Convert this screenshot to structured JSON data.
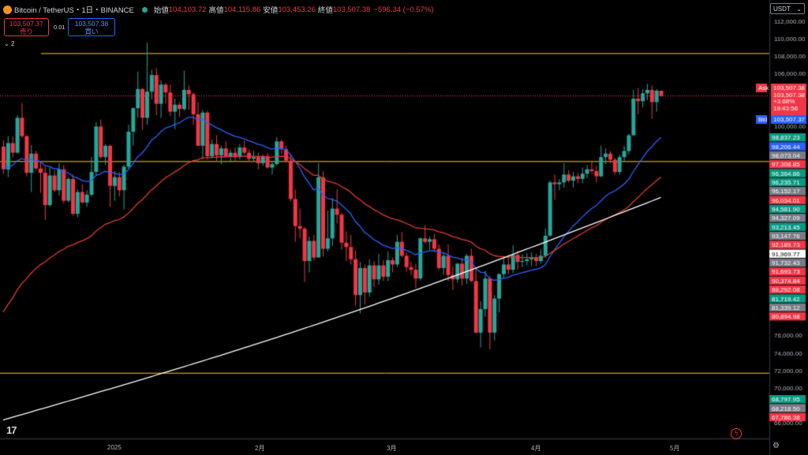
{
  "header": {
    "symbol": "Bitcoin / TetherUS・1日・BINANCE",
    "open_label": "始値",
    "open": "104,103.72",
    "high_label": "高値",
    "high": "104,115.86",
    "low_label": "安値",
    "low": "103,453.26",
    "close_label": "終値",
    "close": "103,507.38",
    "change": "−596.34 (−0.57%)"
  },
  "trade": {
    "sell_price": "103,507.37",
    "sell_label": "売り",
    "spread": "0.01",
    "buy_price": "103,507.38",
    "buy_label": "買い"
  },
  "indicators_count": "2",
  "currency": "USDT",
  "colors": {
    "up": "#26a69a",
    "down": "#f23645",
    "ema_fast": "#2962ff",
    "ema_mid": "#e53935",
    "ma_long": "#ffffff",
    "hline": "#f5d300",
    "bg": "#000000"
  },
  "chart_data": {
    "type": "candlestick",
    "y_axis_ticks": [
      "112,000.00",
      "110,000.00",
      "108,000.00",
      "106,000.00",
      "100,000.00",
      "76,000.00",
      "74,000.00",
      "72,000.00",
      "70,000.00",
      "66,000.00"
    ],
    "x_axis_labels": [
      "2025",
      "2月",
      "3月",
      "4月",
      "5月"
    ],
    "ylim": [
      66000,
      112000
    ],
    "horizontal_lines": [
      108400,
      96034,
      71800
    ],
    "price_line": 103507.38,
    "ask_label": "Ask",
    "bid_label": "Bid",
    "ask_tag": [
      "103,507.38",
      "103,507.38",
      "+3.68%",
      "19:43:56"
    ],
    "bid_tag": "103,507.37",
    "price_tags": [
      {
        "text": "98,837.23",
        "color": "#089981"
      },
      {
        "text": "98,206.44",
        "color": "#2962ff"
      },
      {
        "text": "98,073.04",
        "color": "#787b86"
      },
      {
        "text": "97,308.85",
        "color": "#f23645"
      },
      {
        "text": "96,364.86",
        "color": "#089981"
      },
      {
        "text": "96,235.71",
        "color": "#089981"
      },
      {
        "text": "96,152.17",
        "color": "#787b86"
      },
      {
        "text": "96,034.01",
        "color": "#f23645"
      },
      {
        "text": "94,581.90",
        "color": "#089981"
      },
      {
        "text": "94,327.09",
        "color": "#787b86"
      },
      {
        "text": "93,213.45",
        "color": "#089981"
      },
      {
        "text": "93,147.76",
        "color": "#787b86"
      },
      {
        "text": "92,189.73",
        "color": "#f23645"
      },
      {
        "text": "91,969.77",
        "color": "#ffffff"
      },
      {
        "text": "91,732.43",
        "color": "#787b86"
      },
      {
        "text": "91,693.73",
        "color": "#f23645"
      },
      {
        "text": "90,374.84",
        "color": "#f23645"
      },
      {
        "text": "88,292.08",
        "color": "#f23645"
      },
      {
        "text": "81,719.42",
        "color": "#089981"
      },
      {
        "text": "81,339.12",
        "color": "#787b86"
      },
      {
        "text": "80,894.98",
        "color": "#f23645"
      },
      {
        "text": "68,797.95",
        "color": "#089981"
      },
      {
        "text": "68,218.50",
        "color": "#787b86"
      },
      {
        "text": "67,786.38",
        "color": "#f23645"
      }
    ],
    "candles": [
      [
        97700,
        98400,
        94600,
        95100
      ],
      [
        95100,
        98900,
        94200,
        98100
      ],
      [
        98100,
        98900,
        96500,
        97000
      ],
      [
        97000,
        101300,
        96900,
        101000
      ],
      [
        101000,
        102700,
        98700,
        98900
      ],
      [
        98900,
        99000,
        94300,
        94700
      ],
      [
        94700,
        97900,
        92500,
        96900
      ],
      [
        96900,
        97200,
        95000,
        95200
      ],
      [
        95200,
        96000,
        92400,
        94700
      ],
      [
        94700,
        95400,
        89300,
        91000
      ],
      [
        91000,
        95300,
        90800,
        94400
      ],
      [
        94400,
        95000,
        92500,
        92700
      ],
      [
        92700,
        95800,
        92100,
        95100
      ],
      [
        95100,
        95600,
        91200,
        91500
      ],
      [
        91500,
        94200,
        91300,
        94000
      ],
      [
        94000,
        94500,
        89800,
        90000
      ],
      [
        90000,
        92800,
        89600,
        92500
      ],
      [
        92500,
        93400,
        91200,
        91300
      ],
      [
        91300,
        92700,
        90800,
        92200
      ],
      [
        92200,
        96500,
        92000,
        94800
      ],
      [
        94800,
        100500,
        94400,
        100000
      ],
      [
        100000,
        100800,
        96300,
        96500
      ],
      [
        96500,
        98000,
        95600,
        97800
      ],
      [
        97800,
        97900,
        90800,
        93200
      ],
      [
        93200,
        94900,
        91500,
        94200
      ],
      [
        94200,
        94800,
        92000,
        92700
      ],
      [
        92700,
        95600,
        90500,
        95400
      ],
      [
        95400,
        100200,
        95200,
        99400
      ],
      [
        99400,
        102200,
        97800,
        102100
      ],
      [
        102100,
        106300,
        101000,
        104300
      ],
      [
        104300,
        104400,
        99600,
        101000
      ],
      [
        101000,
        109600,
        100200,
        104000
      ],
      [
        104000,
        106500,
        103100,
        105900
      ],
      [
        105900,
        106700,
        101300,
        102600
      ],
      [
        102600,
        105300,
        101000,
        104800
      ],
      [
        104800,
        105000,
        102600,
        103900
      ],
      [
        103900,
        104800,
        101200,
        101700
      ],
      [
        101700,
        103200,
        99700,
        102500
      ],
      [
        102500,
        102800,
        101100,
        102000
      ],
      [
        102000,
        106400,
        101800,
        104200
      ],
      [
        104200,
        104700,
        101900,
        103700
      ],
      [
        103700,
        103900,
        100200,
        101400
      ],
      [
        101400,
        102800,
        97800,
        97800
      ],
      [
        97800,
        101900,
        96200,
        101600
      ],
      [
        101600,
        101800,
        96200,
        96600
      ],
      [
        96600,
        98500,
        96300,
        98000
      ],
      [
        98000,
        99000,
        96000,
        96700
      ],
      [
        96700,
        97800,
        95700,
        97500
      ],
      [
        97500,
        98300,
        96500,
        96600
      ],
      [
        96600,
        97400,
        95900,
        97000
      ],
      [
        97000,
        97600,
        96000,
        96500
      ],
      [
        96500,
        98000,
        96200,
        97600
      ],
      [
        97600,
        98400,
        96800,
        97000
      ],
      [
        97000,
        97400,
        96000,
        96300
      ],
      [
        96300,
        97200,
        96000,
        96500
      ],
      [
        96500,
        97000,
        95100,
        95800
      ],
      [
        95800,
        96800,
        95500,
        96600
      ],
      [
        96600,
        97000,
        95200,
        95300
      ],
      [
        95300,
        96000,
        94500,
        95700
      ],
      [
        95700,
        98800,
        95500,
        98300
      ],
      [
        98300,
        98500,
        96900,
        97400
      ],
      [
        97400,
        97800,
        95900,
        96100
      ],
      [
        96100,
        96700,
        91400,
        91700
      ],
      [
        91700,
        92800,
        86800,
        88600
      ],
      [
        88600,
        90600,
        87200,
        88300
      ],
      [
        88300,
        88500,
        82200,
        84600
      ],
      [
        84600,
        87400,
        83300,
        86900
      ],
      [
        86900,
        87600,
        84700,
        85000
      ],
      [
        85000,
        95800,
        85000,
        94200
      ],
      [
        94200,
        94900,
        85100,
        86000
      ],
      [
        86000,
        90400,
        85700,
        87200
      ],
      [
        87200,
        91800,
        86300,
        90600
      ],
      [
        90600,
        92800,
        88900,
        89900
      ],
      [
        89900,
        90100,
        85900,
        86700
      ],
      [
        86700,
        88000,
        84600,
        86200
      ],
      [
        86200,
        87600,
        84200,
        84800
      ],
      [
        84800,
        85800,
        79500,
        80700
      ],
      [
        80700,
        84500,
        78600,
        83800
      ],
      [
        83800,
        84200,
        79600,
        81000
      ],
      [
        81000,
        84800,
        80500,
        84100
      ],
      [
        84100,
        84600,
        81600,
        82500
      ],
      [
        82500,
        85400,
        81900,
        84100
      ],
      [
        84100,
        84700,
        82300,
        82800
      ],
      [
        82800,
        85700,
        82300,
        84700
      ],
      [
        84700,
        85000,
        83300,
        84200
      ],
      [
        84200,
        87600,
        83900,
        86800
      ],
      [
        86800,
        87900,
        85000,
        85200
      ],
      [
        85200,
        85600,
        83400,
        83900
      ],
      [
        83900,
        84500,
        83000,
        83600
      ],
      [
        83600,
        84300,
        81500,
        82600
      ],
      [
        82600,
        87300,
        82400,
        87200
      ],
      [
        87200,
        88700,
        86600,
        86800
      ],
      [
        86800,
        87400,
        85900,
        87100
      ],
      [
        87100,
        87700,
        85600,
        86000
      ],
      [
        86000,
        86500,
        83600,
        83800
      ],
      [
        83800,
        85600,
        83000,
        85200
      ],
      [
        85200,
        86500,
        82300,
        83000
      ],
      [
        83000,
        84000,
        81300,
        82500
      ],
      [
        82500,
        84400,
        82100,
        84300
      ],
      [
        84300,
        85000,
        81800,
        82600
      ],
      [
        82600,
        85400,
        82000,
        85200
      ],
      [
        85200,
        86000,
        82200,
        82300
      ],
      [
        82300,
        83800,
        76300,
        76400
      ],
      [
        76400,
        80000,
        74700,
        79100
      ],
      [
        79100,
        83500,
        78200,
        82600
      ],
      [
        82600,
        82900,
        74500,
        76400
      ],
      [
        76400,
        80700,
        75500,
        80300
      ],
      [
        80300,
        83200,
        78700,
        83100
      ],
      [
        83100,
        85100,
        82700,
        84200
      ],
      [
        84200,
        85300,
        83100,
        83600
      ],
      [
        83600,
        86400,
        83200,
        85300
      ],
      [
        85300,
        85800,
        83600,
        84500
      ],
      [
        84500,
        85400,
        83900,
        84600
      ],
      [
        84600,
        85500,
        84100,
        84800
      ],
      [
        84800,
        85600,
        84000,
        85000
      ],
      [
        85000,
        85400,
        84000,
        84600
      ],
      [
        84600,
        85900,
        84300,
        85200
      ],
      [
        85200,
        88300,
        85000,
        87500
      ],
      [
        87500,
        93800,
        87400,
        93600
      ],
      [
        93600,
        94500,
        91600,
        93400
      ],
      [
        93400,
        94000,
        92700,
        93600
      ],
      [
        93600,
        95800,
        93000,
        94500
      ],
      [
        94500,
        95000,
        93600,
        93800
      ],
      [
        93800,
        94800,
        93000,
        94300
      ],
      [
        94300,
        94700,
        93500,
        94000
      ],
      [
        94000,
        95300,
        93500,
        94600
      ],
      [
        94600,
        95600,
        94100,
        95100
      ],
      [
        95100,
        96000,
        94600,
        94900
      ],
      [
        94900,
        95500,
        93600,
        94300
      ],
      [
        94300,
        97800,
        94200,
        96500
      ],
      [
        96500,
        97500,
        95700,
        96900
      ],
      [
        96900,
        97200,
        95800,
        96200
      ],
      [
        96200,
        96400,
        94500,
        94800
      ],
      [
        94800,
        96800,
        94500,
        96500
      ],
      [
        96500,
        97800,
        96000,
        97200
      ],
      [
        97200,
        99200,
        96800,
        99000
      ],
      [
        99000,
        104200,
        98900,
        103200
      ],
      [
        103200,
        104400,
        101400,
        102900
      ],
      [
        102900,
        104300,
        102200,
        103800
      ],
      [
        103800,
        104900,
        103000,
        104200
      ],
      [
        104200,
        104700,
        100900,
        102800
      ],
      [
        102800,
        104300,
        101700,
        104100
      ],
      [
        104100,
        104100,
        103400,
        103500
      ]
    ]
  }
}
